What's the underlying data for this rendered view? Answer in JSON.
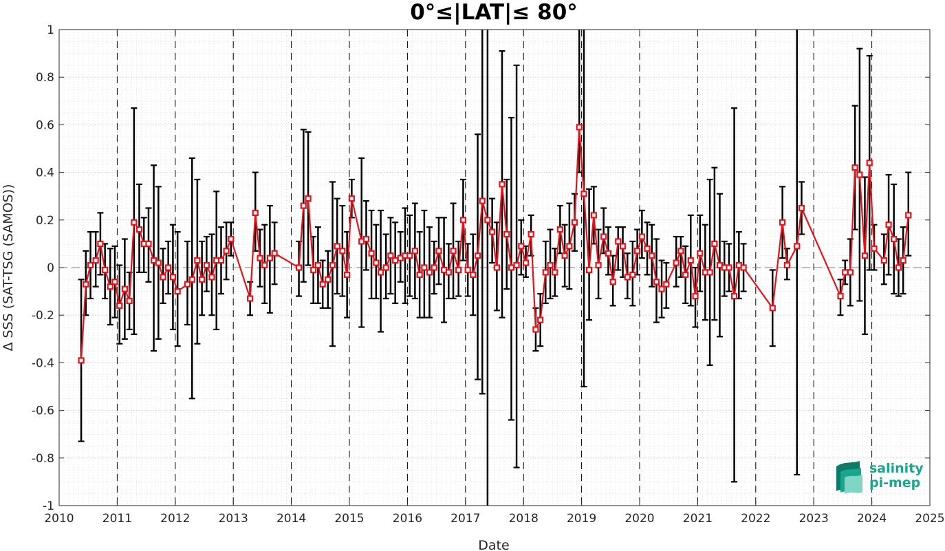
{
  "chart_data": {
    "type": "line",
    "title": "0°≤|LAT|≤ 80°",
    "xlabel": "Date",
    "ylabel": "Δ SSS (SAT-TSG (SAMOS))",
    "xlim": [
      2010,
      2025
    ],
    "ylim": [
      -1,
      1
    ],
    "x_ticks": [
      "2010",
      "2011",
      "2012",
      "2013",
      "2014",
      "2015",
      "2016",
      "2017",
      "2018",
      "2019",
      "2020",
      "2021",
      "2022",
      "2023",
      "2024",
      "2025"
    ],
    "y_ticks": [
      "-1",
      "-0.8",
      "-0.6",
      "-0.4",
      "-0.2",
      "0",
      "0.2",
      "0.4",
      "0.6",
      "0.8",
      "1"
    ],
    "grid": true,
    "zero_line": true,
    "year_boundary_lines": true,
    "colors": {
      "series": "#e8111a",
      "errorbar": "#000000",
      "grid": "#d9d9d9",
      "logo": "#1aa58f"
    },
    "series": [
      {
        "marker": "square",
        "points": [
          {
            "x": 2010.38,
            "y": -0.39,
            "lo": -0.73,
            "hi": -0.05
          },
          {
            "x": 2010.46,
            "y": -0.07,
            "lo": -0.2,
            "hi": 0.07
          },
          {
            "x": 2010.54,
            "y": 0.01,
            "lo": -0.13,
            "hi": 0.15
          },
          {
            "x": 2010.63,
            "y": 0.03,
            "lo": -0.08,
            "hi": 0.15
          },
          {
            "x": 2010.71,
            "y": 0.1,
            "lo": -0.03,
            "hi": 0.23
          },
          {
            "x": 2010.79,
            "y": -0.01,
            "lo": -0.13,
            "hi": 0.1
          },
          {
            "x": 2010.88,
            "y": -0.08,
            "lo": -0.24,
            "hi": 0.08
          },
          {
            "x": 2010.96,
            "y": -0.06,
            "lo": -0.21,
            "hi": 0.09
          },
          {
            "x": 2011.04,
            "y": -0.16,
            "lo": -0.32,
            "hi": 0.01
          },
          {
            "x": 2011.13,
            "y": -0.09,
            "lo": -0.3,
            "hi": 0.12
          },
          {
            "x": 2011.21,
            "y": -0.14,
            "lo": -0.26,
            "hi": -0.02
          },
          {
            "x": 2011.29,
            "y": 0.19,
            "lo": -0.28,
            "hi": 0.67
          },
          {
            "x": 2011.38,
            "y": 0.16,
            "lo": -0.02,
            "hi": 0.35
          },
          {
            "x": 2011.46,
            "y": 0.1,
            "lo": -0.02,
            "hi": 0.21
          },
          {
            "x": 2011.54,
            "y": 0.1,
            "lo": -0.06,
            "hi": 0.25
          },
          {
            "x": 2011.63,
            "y": 0.03,
            "lo": -0.35,
            "hi": 0.43
          },
          {
            "x": 2011.71,
            "y": 0.02,
            "lo": -0.3,
            "hi": 0.34
          },
          {
            "x": 2011.79,
            "y": -0.04,
            "lo": -0.15,
            "hi": 0.08
          },
          {
            "x": 2011.88,
            "y": 0.0,
            "lo": -0.11,
            "hi": 0.11
          },
          {
            "x": 2011.96,
            "y": -0.04,
            "lo": -0.26,
            "hi": 0.18
          },
          {
            "x": 2012.04,
            "y": -0.1,
            "lo": -0.33,
            "hi": 0.15
          },
          {
            "x": 2012.21,
            "y": -0.07,
            "lo": -0.24,
            "hi": 0.11
          },
          {
            "x": 2012.29,
            "y": -0.05,
            "lo": -0.55,
            "hi": 0.46
          },
          {
            "x": 2012.38,
            "y": 0.03,
            "lo": -0.32,
            "hi": 0.37
          },
          {
            "x": 2012.46,
            "y": -0.05,
            "lo": -0.2,
            "hi": 0.11
          },
          {
            "x": 2012.54,
            "y": 0.01,
            "lo": -0.1,
            "hi": 0.13
          },
          {
            "x": 2012.63,
            "y": -0.04,
            "lo": -0.2,
            "hi": 0.14
          },
          {
            "x": 2012.71,
            "y": 0.03,
            "lo": -0.26,
            "hi": 0.32
          },
          {
            "x": 2012.79,
            "y": 0.03,
            "lo": -0.11,
            "hi": 0.17
          },
          {
            "x": 2012.88,
            "y": 0.07,
            "lo": -0.05,
            "hi": 0.19
          },
          {
            "x": 2012.96,
            "y": 0.12,
            "lo": 0.05,
            "hi": 0.19
          },
          {
            "x": 2013.29,
            "y": -0.13,
            "lo": -0.2,
            "hi": -0.06
          },
          {
            "x": 2013.38,
            "y": 0.23,
            "lo": 0.07,
            "hi": 0.4
          },
          {
            "x": 2013.46,
            "y": 0.04,
            "lo": -0.08,
            "hi": 0.16
          },
          {
            "x": 2013.54,
            "y": 0.01,
            "lo": -0.15,
            "hi": 0.18
          },
          {
            "x": 2013.63,
            "y": 0.04,
            "lo": -0.19,
            "hi": 0.26
          },
          {
            "x": 2013.71,
            "y": 0.06,
            "lo": -0.07,
            "hi": 0.19
          },
          {
            "x": 2014.13,
            "y": 0.0,
            "lo": -0.12,
            "hi": 0.11
          },
          {
            "x": 2014.21,
            "y": 0.26,
            "lo": -0.06,
            "hi": 0.58
          },
          {
            "x": 2014.29,
            "y": 0.29,
            "lo": 0.01,
            "hi": 0.57
          },
          {
            "x": 2014.38,
            "y": -0.01,
            "lo": -0.15,
            "hi": 0.13
          },
          {
            "x": 2014.46,
            "y": 0.01,
            "lo": -0.15,
            "hi": 0.17
          },
          {
            "x": 2014.54,
            "y": -0.07,
            "lo": -0.17,
            "hi": 0.03
          },
          {
            "x": 2014.63,
            "y": -0.05,
            "lo": -0.17,
            "hi": 0.07
          },
          {
            "x": 2014.71,
            "y": 0.01,
            "lo": -0.33,
            "hi": 0.36
          },
          {
            "x": 2014.79,
            "y": 0.09,
            "lo": -0.11,
            "hi": 0.29
          },
          {
            "x": 2014.88,
            "y": 0.07,
            "lo": -0.12,
            "hi": 0.26
          },
          {
            "x": 2014.96,
            "y": -0.03,
            "lo": -0.21,
            "hi": 0.15
          },
          {
            "x": 2015.04,
            "y": 0.29,
            "lo": 0.21,
            "hi": 0.37
          },
          {
            "x": 2015.21,
            "y": 0.11,
            "lo": -0.25,
            "hi": 0.46
          },
          {
            "x": 2015.29,
            "y": 0.12,
            "lo": -0.01,
            "hi": 0.28
          },
          {
            "x": 2015.38,
            "y": 0.06,
            "lo": -0.13,
            "hi": 0.24
          },
          {
            "x": 2015.46,
            "y": 0.02,
            "lo": -0.13,
            "hi": 0.18
          },
          {
            "x": 2015.54,
            "y": -0.02,
            "lo": -0.27,
            "hi": 0.24
          },
          {
            "x": 2015.63,
            "y": 0.0,
            "lo": -0.13,
            "hi": 0.14
          },
          {
            "x": 2015.71,
            "y": 0.05,
            "lo": -0.11,
            "hi": 0.21
          },
          {
            "x": 2015.79,
            "y": 0.03,
            "lo": -0.15,
            "hi": 0.19
          },
          {
            "x": 2015.88,
            "y": 0.04,
            "lo": -0.06,
            "hi": 0.15
          },
          {
            "x": 2015.96,
            "y": 0.05,
            "lo": -0.15,
            "hi": 0.25
          },
          {
            "x": 2016.04,
            "y": 0.05,
            "lo": -0.12,
            "hi": 0.22
          },
          {
            "x": 2016.13,
            "y": 0.07,
            "lo": -0.13,
            "hi": 0.27
          },
          {
            "x": 2016.21,
            "y": -0.03,
            "lo": -0.21,
            "hi": 0.15
          },
          {
            "x": 2016.29,
            "y": 0.0,
            "lo": -0.21,
            "hi": 0.24
          },
          {
            "x": 2016.38,
            "y": -0.02,
            "lo": -0.21,
            "hi": 0.17
          },
          {
            "x": 2016.46,
            "y": 0.0,
            "lo": -0.11,
            "hi": 0.11
          },
          {
            "x": 2016.54,
            "y": 0.07,
            "lo": -0.07,
            "hi": 0.21
          },
          {
            "x": 2016.63,
            "y": -0.01,
            "lo": -0.23,
            "hi": 0.21
          },
          {
            "x": 2016.71,
            "y": -0.02,
            "lo": -0.13,
            "hi": 0.1
          },
          {
            "x": 2016.79,
            "y": 0.07,
            "lo": -0.13,
            "hi": 0.27
          },
          {
            "x": 2016.88,
            "y": -0.01,
            "lo": -0.12,
            "hi": 0.11
          },
          {
            "x": 2016.96,
            "y": 0.2,
            "lo": 0.03,
            "hi": 0.37
          },
          {
            "x": 2017.04,
            "y": -0.01,
            "lo": -0.12,
            "hi": 0.1
          },
          {
            "x": 2017.13,
            "y": -0.03,
            "lo": -0.2,
            "hi": 0.14
          },
          {
            "x": 2017.21,
            "y": 0.05,
            "lo": -0.47,
            "hi": 0.56
          },
          {
            "x": 2017.29,
            "y": 0.28,
            "lo": -0.53,
            "hi": 1.09
          },
          {
            "x": 2017.38,
            "y": 0.2,
            "lo": -1.1,
            "hi": 1.5
          },
          {
            "x": 2017.46,
            "y": 0.15,
            "lo": 0.02,
            "hi": 0.29
          },
          {
            "x": 2017.54,
            "y": 0.0,
            "lo": -0.18,
            "hi": 0.19
          },
          {
            "x": 2017.63,
            "y": 0.35,
            "lo": -0.21,
            "hi": 0.91
          },
          {
            "x": 2017.71,
            "y": 0.14,
            "lo": -0.09,
            "hi": 0.37
          },
          {
            "x": 2017.79,
            "y": 0.0,
            "lo": -0.64,
            "hi": 0.63
          },
          {
            "x": 2017.88,
            "y": 0.01,
            "lo": -0.84,
            "hi": 0.85
          },
          {
            "x": 2017.96,
            "y": 0.09,
            "lo": -0.03,
            "hi": 0.2
          },
          {
            "x": 2018.04,
            "y": 0.02,
            "lo": -0.04,
            "hi": 0.09
          },
          {
            "x": 2018.13,
            "y": 0.14,
            "lo": 0.05,
            "hi": 0.22
          },
          {
            "x": 2018.21,
            "y": -0.26,
            "lo": -0.35,
            "hi": -0.17
          },
          {
            "x": 2018.29,
            "y": -0.22,
            "lo": -0.33,
            "hi": -0.11
          },
          {
            "x": 2018.38,
            "y": -0.02,
            "lo": -0.15,
            "hi": 0.11
          },
          {
            "x": 2018.46,
            "y": 0.01,
            "lo": -0.13,
            "hi": 0.16
          },
          {
            "x": 2018.54,
            "y": -0.02,
            "lo": -0.12,
            "hi": 0.08
          },
          {
            "x": 2018.63,
            "y": 0.16,
            "lo": 0.06,
            "hi": 0.26
          },
          {
            "x": 2018.71,
            "y": 0.05,
            "lo": -0.08,
            "hi": 0.18
          },
          {
            "x": 2018.79,
            "y": 0.09,
            "lo": -0.09,
            "hi": 0.27
          },
          {
            "x": 2018.88,
            "y": 0.19,
            "lo": 0.07,
            "hi": 0.31
          },
          {
            "x": 2018.96,
            "y": 0.59,
            "lo": 0.4,
            "hi": 1.3
          },
          {
            "x": 2019.04,
            "y": 0.31,
            "lo": -0.5,
            "hi": 1.2
          },
          {
            "x": 2019.13,
            "y": -0.01,
            "lo": -0.22,
            "hi": 0.33
          },
          {
            "x": 2019.21,
            "y": 0.22,
            "lo": 0.1,
            "hi": 0.34
          },
          {
            "x": 2019.29,
            "y": 0.01,
            "lo": -0.13,
            "hi": 0.16
          },
          {
            "x": 2019.38,
            "y": 0.13,
            "lo": 0.06,
            "hi": 0.25
          },
          {
            "x": 2019.46,
            "y": 0.06,
            "lo": -0.03,
            "hi": 0.17
          },
          {
            "x": 2019.54,
            "y": -0.06,
            "lo": -0.16,
            "hi": 0.05
          },
          {
            "x": 2019.63,
            "y": 0.11,
            "lo": -0.01,
            "hi": 0.17
          },
          {
            "x": 2019.71,
            "y": 0.09,
            "lo": -0.04,
            "hi": 0.17
          },
          {
            "x": 2019.79,
            "y": -0.04,
            "lo": -0.13,
            "hi": 0.06
          },
          {
            "x": 2019.88,
            "y": -0.03,
            "lo": -0.16,
            "hi": 0.11
          },
          {
            "x": 2019.96,
            "y": 0.07,
            "lo": -0.03,
            "hi": 0.16
          },
          {
            "x": 2020.04,
            "y": 0.13,
            "lo": 0.04,
            "hi": 0.24
          },
          {
            "x": 2020.13,
            "y": 0.08,
            "lo": -0.03,
            "hi": 0.19
          },
          {
            "x": 2020.21,
            "y": 0.05,
            "lo": -0.08,
            "hi": 0.18
          },
          {
            "x": 2020.29,
            "y": -0.06,
            "lo": -0.23,
            "hi": 0.12
          },
          {
            "x": 2020.38,
            "y": -0.09,
            "lo": -0.21,
            "hi": 0.03
          },
          {
            "x": 2020.46,
            "y": -0.07,
            "lo": -0.17,
            "hi": 0.02
          },
          {
            "x": 2020.63,
            "y": 0.02,
            "lo": -0.08,
            "hi": 0.13
          },
          {
            "x": 2020.71,
            "y": 0.07,
            "lo": -0.04,
            "hi": 0.13
          },
          {
            "x": 2020.79,
            "y": -0.03,
            "lo": -0.15,
            "hi": 0.09
          },
          {
            "x": 2020.88,
            "y": 0.03,
            "lo": -0.16,
            "hi": 0.22
          },
          {
            "x": 2020.96,
            "y": -0.12,
            "lo": -0.25,
            "hi": 0.0
          },
          {
            "x": 2021.04,
            "y": 0.06,
            "lo": -0.1,
            "hi": 0.22
          },
          {
            "x": 2021.13,
            "y": -0.02,
            "lo": -0.22,
            "hi": 0.18
          },
          {
            "x": 2021.21,
            "y": -0.02,
            "lo": -0.41,
            "hi": 0.37
          },
          {
            "x": 2021.29,
            "y": 0.1,
            "lo": -0.22,
            "hi": 0.42
          },
          {
            "x": 2021.38,
            "y": 0.01,
            "lo": -0.29,
            "hi": 0.31
          },
          {
            "x": 2021.46,
            "y": 0.0,
            "lo": -0.12,
            "hi": 0.11
          },
          {
            "x": 2021.54,
            "y": 0.0,
            "lo": -0.1,
            "hi": 0.1
          },
          {
            "x": 2021.63,
            "y": -0.12,
            "lo": -0.9,
            "hi": 0.67
          },
          {
            "x": 2021.71,
            "y": 0.01,
            "lo": -0.13,
            "hi": 0.15
          },
          {
            "x": 2021.79,
            "y": 0.0,
            "lo": -0.1,
            "hi": 0.1
          },
          {
            "x": 2022.29,
            "y": -0.17,
            "lo": -0.33,
            "hi": -0.01
          },
          {
            "x": 2022.46,
            "y": 0.19,
            "lo": 0.04,
            "hi": 0.34
          },
          {
            "x": 2022.54,
            "y": 0.01,
            "lo": -0.05,
            "hi": 0.08
          },
          {
            "x": 2022.71,
            "y": 0.09,
            "lo": -0.87,
            "hi": 1.05
          },
          {
            "x": 2022.79,
            "y": 0.25,
            "lo": 0.14,
            "hi": 0.36
          },
          {
            "x": 2023.46,
            "y": -0.12,
            "lo": -0.2,
            "hi": -0.05
          },
          {
            "x": 2023.54,
            "y": -0.02,
            "lo": -0.07,
            "hi": 0.03
          },
          {
            "x": 2023.63,
            "y": -0.02,
            "lo": -0.16,
            "hi": 0.12
          },
          {
            "x": 2023.71,
            "y": 0.42,
            "lo": 0.16,
            "hi": 0.68
          },
          {
            "x": 2023.79,
            "y": 0.39,
            "lo": -0.14,
            "hi": 0.92
          },
          {
            "x": 2023.88,
            "y": 0.05,
            "lo": -0.28,
            "hi": 0.38
          },
          {
            "x": 2023.96,
            "y": 0.44,
            "lo": -0.01,
            "hi": 0.89
          },
          {
            "x": 2024.04,
            "y": 0.08,
            "lo": -0.01,
            "hi": 0.18
          },
          {
            "x": 2024.21,
            "y": 0.03,
            "lo": -0.07,
            "hi": 0.14
          },
          {
            "x": 2024.29,
            "y": 0.18,
            "lo": -0.03,
            "hi": 0.39
          },
          {
            "x": 2024.38,
            "y": 0.12,
            "lo": -0.11,
            "hi": 0.35
          },
          {
            "x": 2024.46,
            "y": 0.0,
            "lo": -0.12,
            "hi": 0.12
          },
          {
            "x": 2024.54,
            "y": 0.03,
            "lo": -0.11,
            "hi": 0.17
          },
          {
            "x": 2024.63,
            "y": 0.22,
            "lo": 0.05,
            "hi": 0.4
          }
        ]
      }
    ],
    "logo": {
      "line1": "salinity",
      "line2": "pi-mep"
    }
  }
}
